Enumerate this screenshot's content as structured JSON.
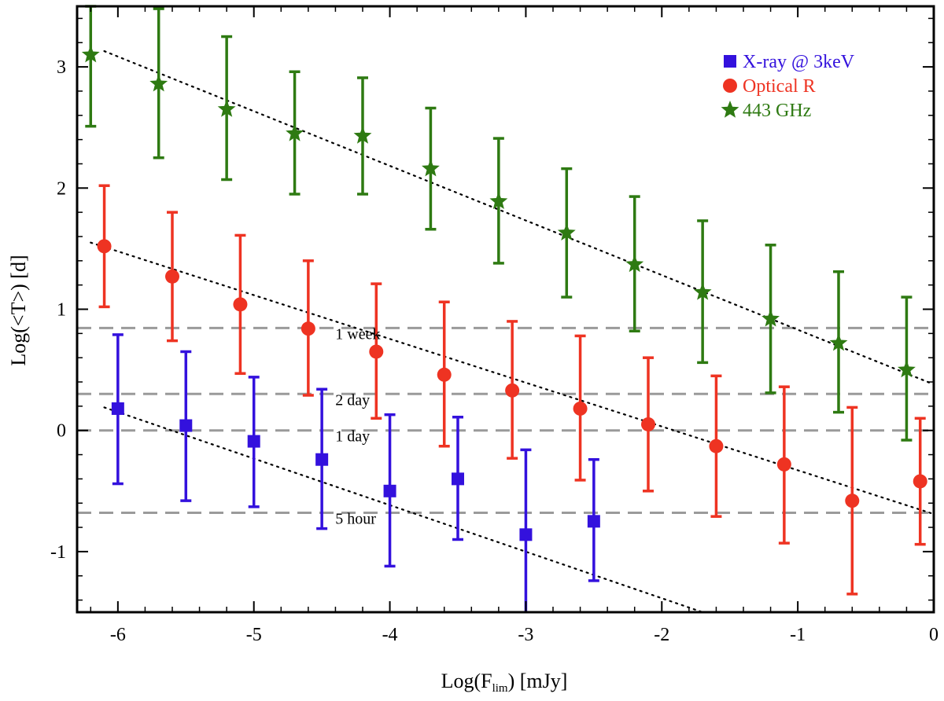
{
  "chart_data": {
    "type": "scatter",
    "xlabel_main": "Log(F",
    "xlabel_sub": "lim",
    "xlabel_tail": ") [mJy]",
    "ylabel": "Log(<T>) [d]",
    "xlim": [
      -6.3,
      0
    ],
    "ylim": [
      -1.5,
      3.5
    ],
    "x_ticks": [
      -6,
      -5,
      -4,
      -3,
      -2,
      -1,
      0
    ],
    "x_tick_labels": [
      "-6",
      "-5",
      "-4",
      "-3",
      "-2",
      "-1",
      "0"
    ],
    "y_ticks": [
      -1,
      0,
      1,
      2,
      3
    ],
    "y_tick_labels": [
      "-1",
      "0",
      "1",
      "2",
      "3"
    ],
    "legend_position": "top-right",
    "series": [
      {
        "name": "X-ray @ 3keV",
        "marker": "square",
        "color": "#3311dd",
        "points": [
          {
            "x": -6.0,
            "y": 0.18,
            "lo": -0.44,
            "hi": 0.79
          },
          {
            "x": -5.5,
            "y": 0.04,
            "lo": -0.58,
            "hi": 0.65
          },
          {
            "x": -5.0,
            "y": -0.09,
            "lo": -0.63,
            "hi": 0.44
          },
          {
            "x": -4.5,
            "y": -0.24,
            "lo": -0.81,
            "hi": 0.34
          },
          {
            "x": -4.0,
            "y": -0.5,
            "lo": -1.12,
            "hi": 0.13
          },
          {
            "x": -3.5,
            "y": -0.4,
            "lo": -0.9,
            "hi": 0.11
          },
          {
            "x": -3.0,
            "y": -0.86,
            "lo": -1.55,
            "hi": -0.16
          },
          {
            "x": -2.5,
            "y": -0.75,
            "lo": -1.24,
            "hi": -0.24
          }
        ],
        "fit": {
          "x1": -6.1,
          "y1": 0.19,
          "x2": -1.7,
          "y2": -1.5
        }
      },
      {
        "name": "Optical R",
        "marker": "circle",
        "color": "#ee3322",
        "points": [
          {
            "x": -6.1,
            "y": 1.52,
            "lo": 1.02,
            "hi": 2.02
          },
          {
            "x": -5.6,
            "y": 1.27,
            "lo": 0.74,
            "hi": 1.8
          },
          {
            "x": -5.1,
            "y": 1.04,
            "lo": 0.47,
            "hi": 1.61
          },
          {
            "x": -4.6,
            "y": 0.84,
            "lo": 0.29,
            "hi": 1.4
          },
          {
            "x": -4.1,
            "y": 0.65,
            "lo": 0.1,
            "hi": 1.21
          },
          {
            "x": -3.6,
            "y": 0.46,
            "lo": -0.13,
            "hi": 1.06
          },
          {
            "x": -3.1,
            "y": 0.33,
            "lo": -0.23,
            "hi": 0.9
          },
          {
            "x": -2.6,
            "y": 0.18,
            "lo": -0.41,
            "hi": 0.78
          },
          {
            "x": -2.1,
            "y": 0.05,
            "lo": -0.5,
            "hi": 0.6
          },
          {
            "x": -1.6,
            "y": -0.13,
            "lo": -0.71,
            "hi": 0.45
          },
          {
            "x": -1.1,
            "y": -0.28,
            "lo": -0.93,
            "hi": 0.36
          },
          {
            "x": -0.6,
            "y": -0.58,
            "lo": -1.35,
            "hi": 0.19
          },
          {
            "x": -0.1,
            "y": -0.42,
            "lo": -0.94,
            "hi": 0.1
          }
        ],
        "fit": {
          "x1": -6.2,
          "y1": 1.55,
          "x2": 0.0,
          "y2": -0.69
        }
      },
      {
        "name": "443 GHz",
        "marker": "star",
        "color": "#2e7a12",
        "points": [
          {
            "x": -6.2,
            "y": 3.1,
            "lo": 2.51,
            "hi": 3.5
          },
          {
            "x": -5.7,
            "y": 2.86,
            "lo": 2.25,
            "hi": 3.48
          },
          {
            "x": -5.2,
            "y": 2.65,
            "lo": 2.07,
            "hi": 3.25
          },
          {
            "x": -4.7,
            "y": 2.45,
            "lo": 1.95,
            "hi": 2.96
          },
          {
            "x": -4.2,
            "y": 2.43,
            "lo": 1.95,
            "hi": 2.91
          },
          {
            "x": -3.7,
            "y": 2.16,
            "lo": 1.66,
            "hi": 2.66
          },
          {
            "x": -3.2,
            "y": 1.89,
            "lo": 1.38,
            "hi": 2.41
          },
          {
            "x": -2.7,
            "y": 1.63,
            "lo": 1.1,
            "hi": 2.16
          },
          {
            "x": -2.2,
            "y": 1.37,
            "lo": 0.82,
            "hi": 1.93
          },
          {
            "x": -1.7,
            "y": 1.14,
            "lo": 0.56,
            "hi": 1.73
          },
          {
            "x": -1.2,
            "y": 0.92,
            "lo": 0.31,
            "hi": 1.53
          },
          {
            "x": -0.7,
            "y": 0.72,
            "lo": 0.15,
            "hi": 1.31
          },
          {
            "x": -0.2,
            "y": 0.5,
            "lo": -0.08,
            "hi": 1.1
          }
        ],
        "fit": {
          "x1": -6.1,
          "y1": 3.13,
          "x2": 0.0,
          "y2": 0.38
        }
      }
    ],
    "reference_lines": [
      {
        "y": 0.845,
        "label": "1 week"
      },
      {
        "y": 0.301,
        "label": "2 day"
      },
      {
        "y": 0.0,
        "label": "1 day"
      },
      {
        "y": -0.68,
        "label": "5 hour"
      }
    ],
    "reference_label_x": -4.1
  }
}
